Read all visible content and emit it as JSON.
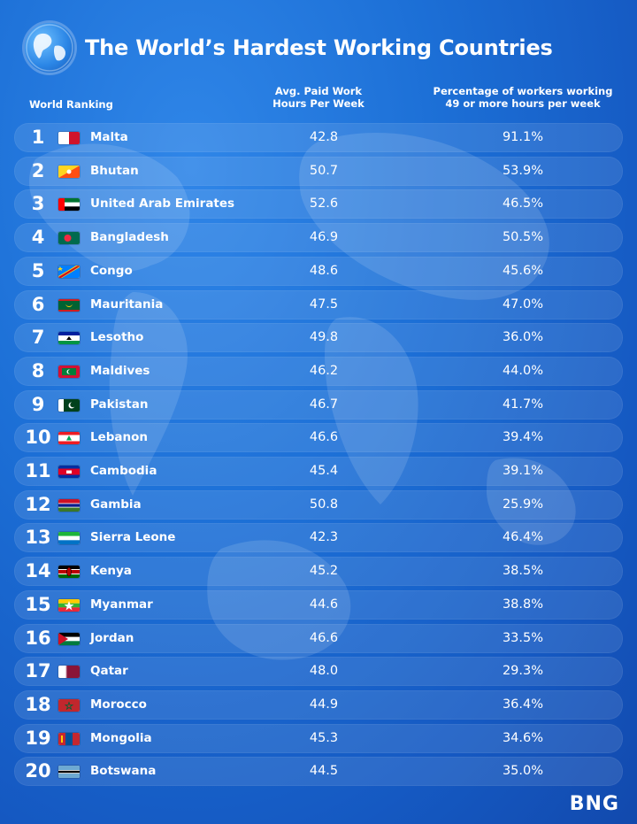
{
  "title": "The World’s Hardest Working Countries",
  "columns": {
    "rank": "World Ranking",
    "hours": "Avg. Paid  Work Hours Per Week",
    "pct": "Percentage of workers working 49 or more hours per week"
  },
  "logo": "BNG",
  "colors": {
    "background": "#1c6fd6",
    "row": "rgba(255,255,255,0.10)",
    "text": "#ffffff"
  },
  "chart_data": {
    "type": "table",
    "title": "The World’s Hardest Working Countries",
    "columns": [
      "World Ranking",
      "Avg. Paid  Work Hours Per Week",
      "Percentage of workers working 49 or more hours per week"
    ],
    "rows": [
      {
        "rank": "1",
        "country": "Malta",
        "flag": "malta-flag",
        "hours": "42.8",
        "pct": "91.1%"
      },
      {
        "rank": "2",
        "country": "Bhutan",
        "flag": "bhutan-flag",
        "hours": "50.7",
        "pct": "53.9%"
      },
      {
        "rank": "3",
        "country": "United Arab Emirates",
        "flag": "uae-flag",
        "hours": "52.6",
        "pct": "46.5%"
      },
      {
        "rank": "4",
        "country": "Bangladesh",
        "flag": "bangladesh-flag",
        "hours": "46.9",
        "pct": "50.5%"
      },
      {
        "rank": "5",
        "country": "Congo",
        "flag": "congo-flag",
        "hours": "48.6",
        "pct": "45.6%"
      },
      {
        "rank": "6",
        "country": "Mauritania",
        "flag": "mauritania-flag",
        "hours": "47.5",
        "pct": "47.0%"
      },
      {
        "rank": "7",
        "country": "Lesotho",
        "flag": "lesotho-flag",
        "hours": "49.8",
        "pct": "36.0%"
      },
      {
        "rank": "8",
        "country": "Maldives",
        "flag": "maldives-flag",
        "hours": "46.2",
        "pct": "44.0%"
      },
      {
        "rank": "9",
        "country": "Pakistan",
        "flag": "pakistan-flag",
        "hours": "46.7",
        "pct": "41.7%"
      },
      {
        "rank": "10",
        "country": "Lebanon",
        "flag": "lebanon-flag",
        "hours": "46.6",
        "pct": "39.4%"
      },
      {
        "rank": "11",
        "country": "Cambodia",
        "flag": "cambodia-flag",
        "hours": "45.4",
        "pct": "39.1%"
      },
      {
        "rank": "12",
        "country": "Gambia",
        "flag": "gambia-flag",
        "hours": "50.8",
        "pct": "25.9%"
      },
      {
        "rank": "13",
        "country": "Sierra Leone",
        "flag": "sierra-leone-flag",
        "hours": "42.3",
        "pct": "46.4%"
      },
      {
        "rank": "14",
        "country": "Kenya",
        "flag": "kenya-flag",
        "hours": "45.2",
        "pct": "38.5%"
      },
      {
        "rank": "15",
        "country": "Myanmar",
        "flag": "myanmar-flag",
        "hours": "44.6",
        "pct": "38.8%"
      },
      {
        "rank": "16",
        "country": "Jordan",
        "flag": "jordan-flag",
        "hours": "46.6",
        "pct": "33.5%"
      },
      {
        "rank": "17",
        "country": "Qatar",
        "flag": "qatar-flag",
        "hours": "48.0",
        "pct": "29.3%"
      },
      {
        "rank": "18",
        "country": "Morocco",
        "flag": "morocco-flag",
        "hours": "44.9",
        "pct": "36.4%"
      },
      {
        "rank": "19",
        "country": "Mongolia",
        "flag": "mongolia-flag",
        "hours": "45.3",
        "pct": "34.6%"
      },
      {
        "rank": "20",
        "country": "Botswana",
        "flag": "botswana-flag",
        "hours": "44.5",
        "pct": "35.0%"
      }
    ]
  }
}
